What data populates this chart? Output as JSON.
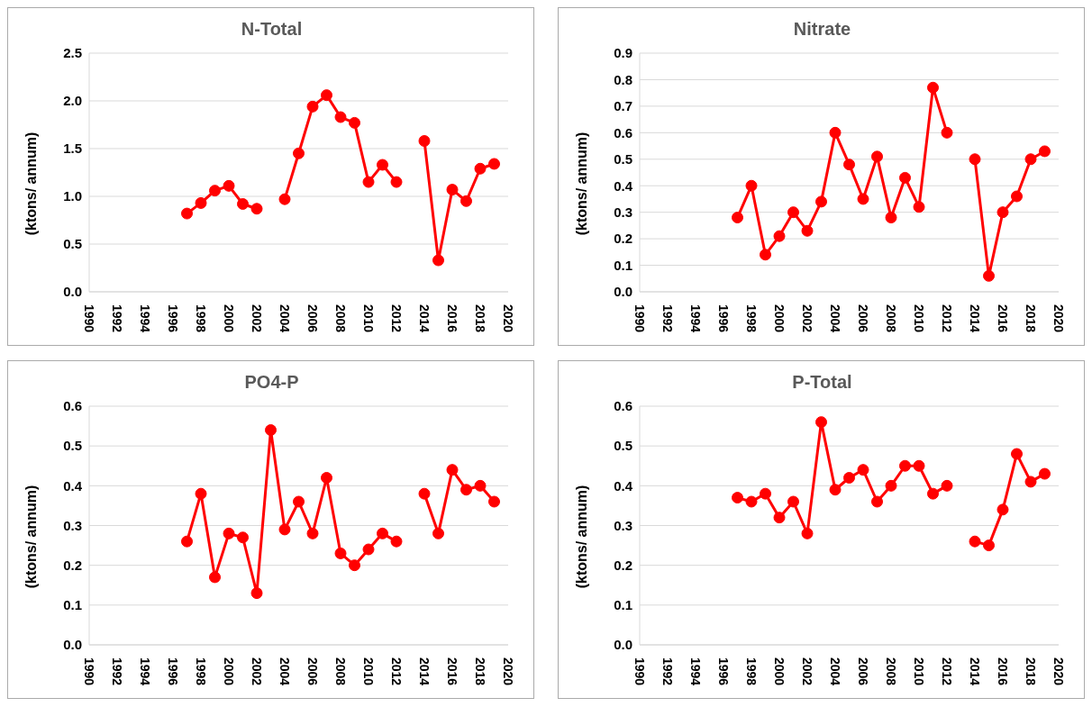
{
  "chart_data": [
    {
      "type": "line",
      "title": "N-Total",
      "ylabel": "(ktons/ annum)",
      "x": [
        1997,
        1998,
        1999,
        2000,
        2001,
        2002,
        2003,
        2004,
        2005,
        2006,
        2007,
        2008,
        2009,
        2010,
        2011,
        2012,
        2013,
        2014,
        2015,
        2016,
        2017,
        2018,
        2019
      ],
      "series": [
        {
          "color": "#ff0000",
          "values": [
            0.82,
            0.93,
            1.06,
            1.11,
            0.92,
            0.87,
            null,
            0.97,
            1.45,
            1.94,
            2.06,
            1.83,
            1.77,
            1.15,
            1.33,
            1.15,
            null,
            1.58,
            0.33,
            1.07,
            0.95,
            1.29,
            1.34
          ]
        }
      ],
      "xlim": [
        1990,
        2020
      ],
      "xticks": [
        1990,
        1992,
        1994,
        1996,
        1998,
        2000,
        2002,
        2004,
        2006,
        2008,
        2010,
        2012,
        2014,
        2016,
        2018,
        2020
      ],
      "ylim": [
        0,
        2.5
      ],
      "yticks": [
        {
          "value": 0,
          "label": "0.0"
        },
        {
          "value": 0.5,
          "label": "0.5"
        },
        {
          "value": 1,
          "label": "1.0"
        },
        {
          "value": 1.5,
          "label": "1.5"
        },
        {
          "value": 2,
          "label": "2.0"
        },
        {
          "value": 2.5,
          "label": "2.5"
        }
      ],
      "grid": "y",
      "marker": "circle",
      "line_style": "solid"
    },
    {
      "type": "line",
      "title": "Nitrate",
      "ylabel": "(ktons/ annum)",
      "x": [
        1997,
        1998,
        1999,
        2000,
        2001,
        2002,
        2003,
        2004,
        2005,
        2006,
        2007,
        2008,
        2009,
        2010,
        2011,
        2012,
        2013,
        2014,
        2015,
        2016,
        2017,
        2018,
        2019
      ],
      "series": [
        {
          "color": "#ff0000",
          "values": [
            0.28,
            0.4,
            0.14,
            0.21,
            0.3,
            0.23,
            0.34,
            0.6,
            0.48,
            0.35,
            0.51,
            0.28,
            0.43,
            0.32,
            0.77,
            0.6,
            null,
            0.5,
            0.06,
            0.3,
            0.36,
            0.5,
            0.53
          ]
        }
      ],
      "xlim": [
        1990,
        2020
      ],
      "xticks": [
        1990,
        1992,
        1994,
        1996,
        1998,
        2000,
        2002,
        2004,
        2006,
        2008,
        2010,
        2012,
        2014,
        2016,
        2018,
        2020
      ],
      "ylim": [
        0,
        0.9
      ],
      "yticks": [
        {
          "value": 0,
          "label": "0.0"
        },
        0.1,
        0.2,
        0.3,
        0.4,
        0.5,
        0.6,
        0.7,
        0.8,
        0.9
      ],
      "grid": "y",
      "marker": "circle",
      "line_style": "solid"
    },
    {
      "type": "line",
      "title": "PO4-P",
      "ylabel": "(ktons/ annum)",
      "x": [
        1997,
        1998,
        1999,
        2000,
        2001,
        2002,
        2003,
        2004,
        2005,
        2006,
        2007,
        2008,
        2009,
        2010,
        2011,
        2012,
        2013,
        2014,
        2015,
        2016,
        2017,
        2018,
        2019
      ],
      "series": [
        {
          "color": "#ff0000",
          "values": [
            0.26,
            0.38,
            0.17,
            0.28,
            0.27,
            0.13,
            0.54,
            0.29,
            0.36,
            0.28,
            0.42,
            0.23,
            0.2,
            0.24,
            0.28,
            0.26,
            null,
            0.38,
            0.28,
            0.44,
            0.39,
            0.4,
            0.36
          ]
        }
      ],
      "xlim": [
        1990,
        2020
      ],
      "xticks": [
        1990,
        1992,
        1994,
        1996,
        1998,
        2000,
        2002,
        2004,
        2006,
        2008,
        2010,
        2012,
        2014,
        2016,
        2018,
        2020
      ],
      "ylim": [
        0,
        0.6
      ],
      "yticks": [
        {
          "value": 0,
          "label": "0.0"
        },
        0.1,
        0.2,
        0.3,
        0.4,
        0.5,
        0.6
      ],
      "grid": "y",
      "marker": "circle",
      "line_style": "solid"
    },
    {
      "type": "line",
      "title": "P-Total",
      "ylabel": "(ktons/ annum)",
      "x": [
        1997,
        1998,
        1999,
        2000,
        2001,
        2002,
        2003,
        2004,
        2005,
        2006,
        2007,
        2008,
        2009,
        2010,
        2011,
        2012,
        2013,
        2014,
        2015,
        2016,
        2017,
        2018,
        2019
      ],
      "series": [
        {
          "color": "#ff0000",
          "values": [
            0.37,
            0.36,
            0.38,
            0.32,
            0.36,
            0.28,
            0.56,
            0.39,
            0.42,
            0.44,
            0.36,
            0.4,
            0.45,
            0.45,
            0.38,
            0.4,
            null,
            0.26,
            0.25,
            0.34,
            0.48,
            0.41,
            0.43
          ]
        }
      ],
      "xlim": [
        1990,
        2020
      ],
      "xticks": [
        1990,
        1992,
        1994,
        1996,
        1998,
        2000,
        2002,
        2004,
        2006,
        2008,
        2010,
        2012,
        2014,
        2016,
        2018,
        2020
      ],
      "ylim": [
        0,
        0.6
      ],
      "yticks": [
        {
          "value": 0,
          "label": "0.0"
        },
        0.1,
        0.2,
        0.3,
        0.4,
        0.5,
        0.6
      ],
      "grid": "y",
      "marker": "circle",
      "line_style": "solid"
    }
  ]
}
